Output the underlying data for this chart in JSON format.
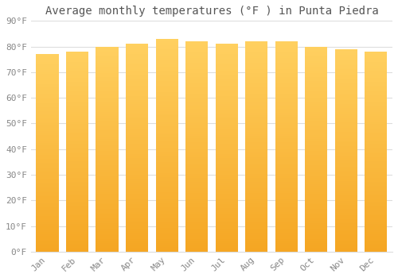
{
  "title": "Average monthly temperatures (°F ) in Punta Piedra",
  "months": [
    "Jan",
    "Feb",
    "Mar",
    "Apr",
    "May",
    "Jun",
    "Jul",
    "Aug",
    "Sep",
    "Oct",
    "Nov",
    "Dec"
  ],
  "values": [
    77,
    78,
    80,
    81,
    83,
    82,
    81,
    82,
    82,
    80,
    79,
    78
  ],
  "ylim": [
    0,
    90
  ],
  "yticks": [
    0,
    10,
    20,
    30,
    40,
    50,
    60,
    70,
    80,
    90
  ],
  "ytick_labels": [
    "0°F",
    "10°F",
    "20°F",
    "30°F",
    "40°F",
    "50°F",
    "60°F",
    "70°F",
    "80°F",
    "90°F"
  ],
  "bar_color_bottom": "#F5A623",
  "bar_color_top": "#FFD060",
  "background_color": "#FFFFFF",
  "grid_color": "#DDDDDD",
  "title_fontsize": 10,
  "tick_fontsize": 8,
  "font_color": "#888888"
}
